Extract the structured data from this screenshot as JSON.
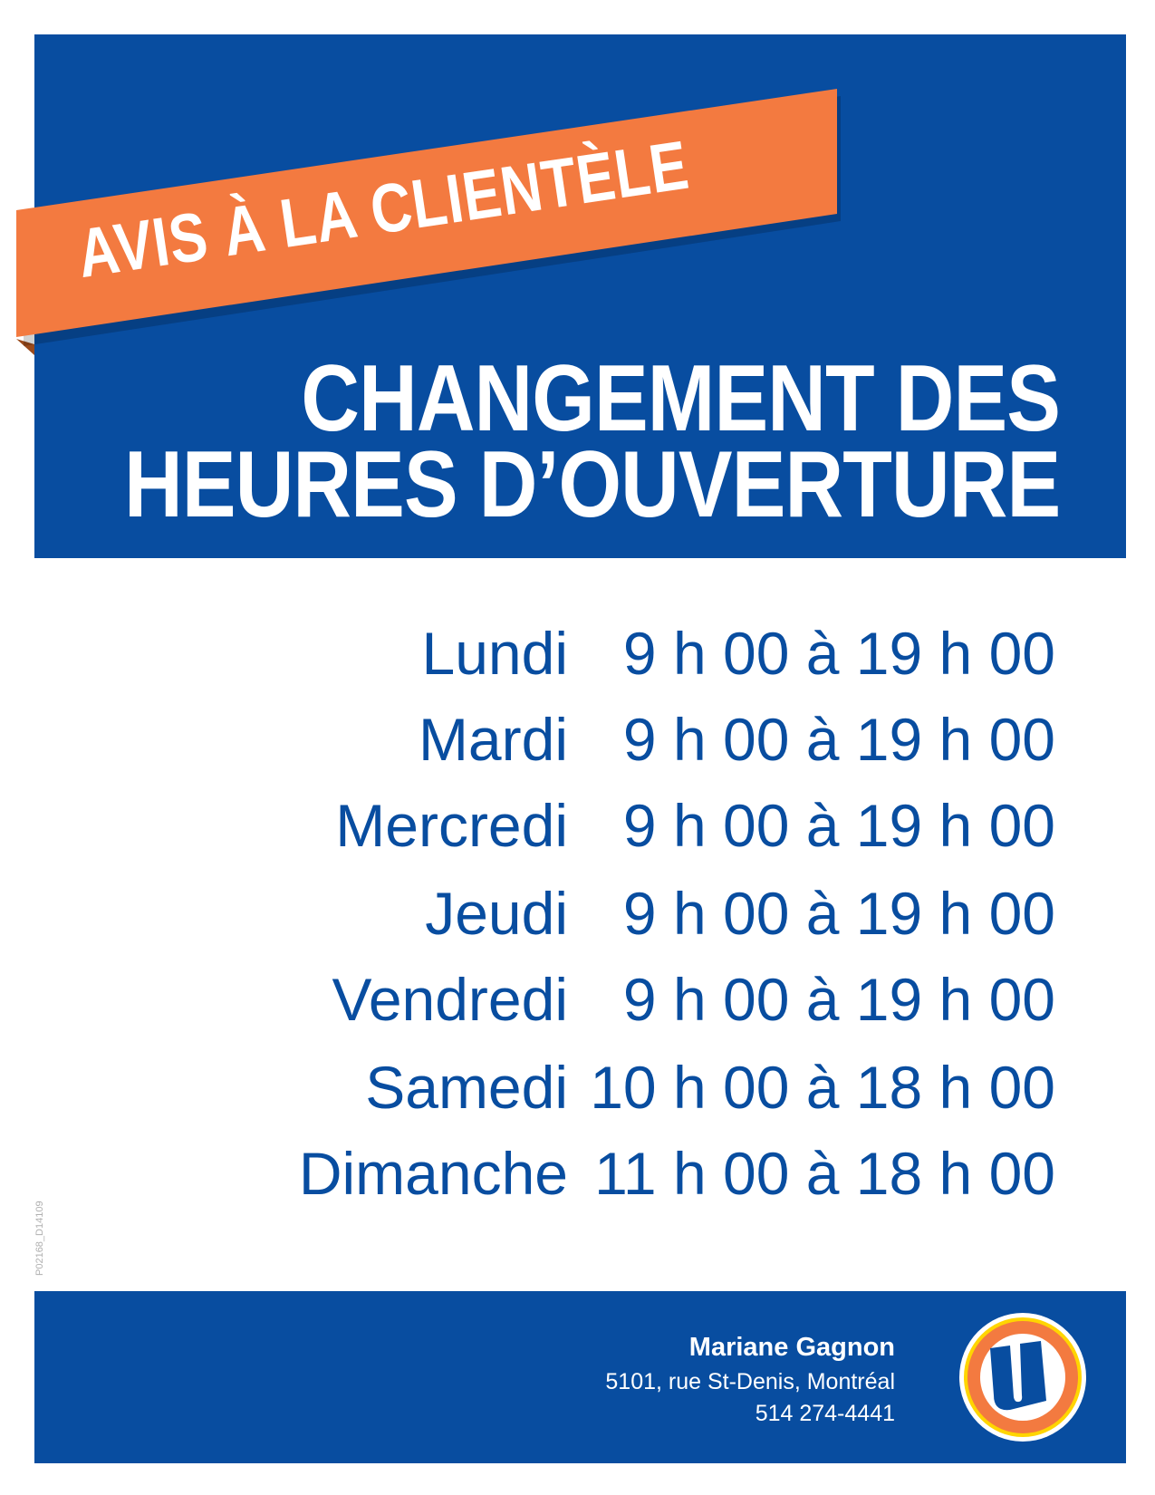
{
  "banner": {
    "text": "AVIS À LA CLIENTÈLE"
  },
  "title": {
    "line1": "CHANGEMENT DES",
    "line2": "HEURES D’OUVERTURE"
  },
  "hours": [
    {
      "day": "Lundi",
      "time": "9 h 00 à 19 h 00"
    },
    {
      "day": "Mardi",
      "time": "9 h 00 à 19 h 00"
    },
    {
      "day": "Mercredi",
      "time": "9 h 00 à 19 h 00"
    },
    {
      "day": "Jeudi",
      "time": "9 h 00 à 19 h 00"
    },
    {
      "day": "Vendredi",
      "time": "9 h 00 à 19 h 00"
    },
    {
      "day": "Samedi",
      "time": "10 h 00 à 18 h 00"
    },
    {
      "day": "Dimanche",
      "time": "11 h 00 à 18 h 00"
    }
  ],
  "code": "P02168_D14109",
  "footer": {
    "name": "Mariane Gagnon",
    "address": "5101, rue St-Denis, Montréal",
    "phone": "514 274-4441",
    "logo": "U"
  },
  "colors": {
    "blue": "#084da0",
    "orange": "#f37a40",
    "yellow": "#ffd500"
  }
}
